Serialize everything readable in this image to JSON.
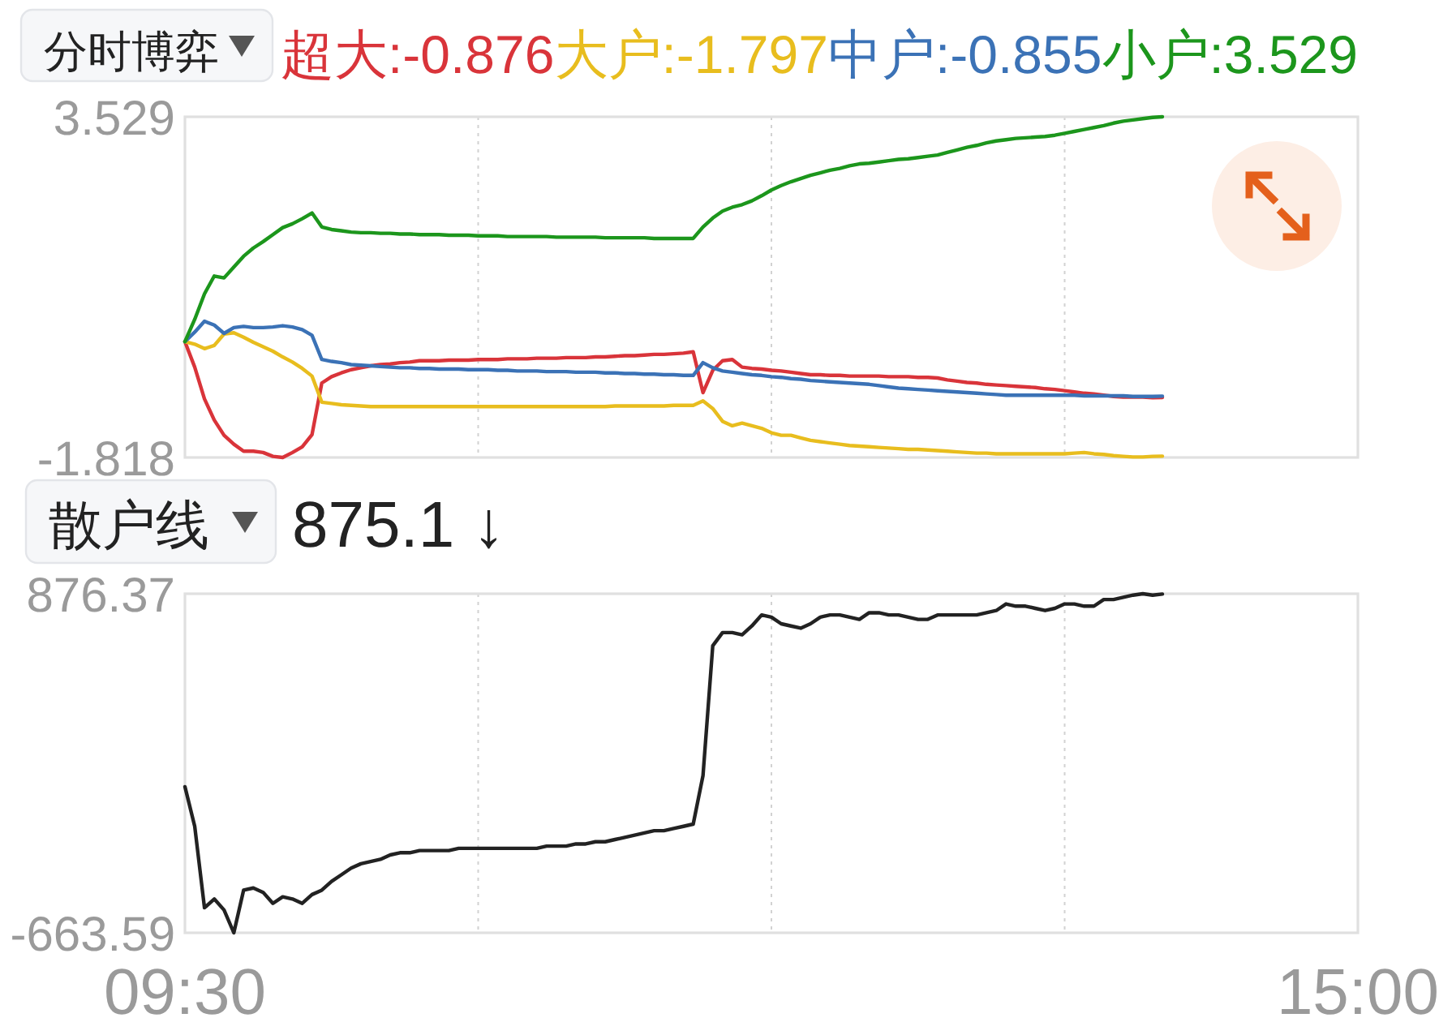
{
  "chart_data": [
    {
      "type": "line",
      "title": "分时博弈",
      "legend": "top",
      "grid": "x",
      "tick_labels": "y",
      "categories": [
        null,
        null,
        null,
        null,
        null,
        null,
        null,
        null,
        null,
        null,
        null,
        null,
        null,
        null,
        null,
        null,
        null,
        null,
        null,
        null,
        null,
        null,
        null,
        null,
        null,
        null,
        null,
        null,
        null,
        null,
        null,
        null,
        null,
        null,
        null,
        null,
        null,
        null,
        null,
        null,
        null,
        null,
        null,
        null,
        null,
        null,
        null,
        null,
        null,
        null,
        null,
        null,
        null,
        null,
        null,
        null,
        null,
        null,
        null,
        null,
        null,
        null,
        null,
        null,
        null,
        null,
        null,
        null,
        null,
        null,
        null,
        null,
        null,
        null,
        null,
        null,
        null,
        null,
        null,
        null,
        null,
        null,
        null,
        null,
        null,
        null,
        null,
        null,
        null,
        null,
        null,
        null,
        null,
        null,
        null,
        null,
        null,
        null,
        null,
        null,
        null,
        null,
        null,
        null,
        null,
        null,
        null,
        null,
        null,
        null,
        null,
        null,
        null,
        null,
        null,
        null,
        null,
        null,
        null,
        null,
        null
      ],
      "ylim": [
        -1.818,
        3.529
      ],
      "yticks": [
        3.529,
        -1.818
      ],
      "series": [
        {
          "name": "超大:-0.876",
          "color": "#d9343a",
          "values": [
            0,
            -0.4,
            -0.9,
            -1.23,
            -1.47,
            -1.61,
            -1.72,
            -1.72,
            -1.74,
            -1.8,
            -1.818,
            -1.74,
            -1.65,
            -1.46,
            -0.65,
            -0.55,
            -0.49,
            -0.44,
            -0.41,
            -0.38,
            -0.36,
            -0.35,
            -0.33,
            -0.32,
            -0.3,
            -0.3,
            -0.3,
            -0.29,
            -0.29,
            -0.29,
            -0.28,
            -0.28,
            -0.28,
            -0.27,
            -0.27,
            -0.27,
            -0.26,
            -0.26,
            -0.26,
            -0.25,
            -0.25,
            -0.25,
            -0.24,
            -0.24,
            -0.23,
            -0.22,
            -0.22,
            -0.21,
            -0.2,
            -0.2,
            -0.19,
            -0.18,
            -0.16,
            -0.8,
            -0.45,
            -0.3,
            -0.28,
            -0.4,
            -0.42,
            -0.43,
            -0.45,
            -0.46,
            -0.48,
            -0.5,
            -0.52,
            -0.52,
            -0.53,
            -0.53,
            -0.54,
            -0.54,
            -0.54,
            -0.54,
            -0.55,
            -0.55,
            -0.55,
            -0.56,
            -0.56,
            -0.57,
            -0.6,
            -0.62,
            -0.64,
            -0.65,
            -0.67,
            -0.68,
            -0.69,
            -0.7,
            -0.71,
            -0.72,
            -0.74,
            -0.75,
            -0.77,
            -0.79,
            -0.81,
            -0.82,
            -0.84,
            -0.86,
            -0.87,
            -0.87,
            -0.87,
            -0.88,
            -0.876,
            null,
            null,
            null,
            null,
            null,
            null,
            null,
            null,
            null,
            null,
            null,
            null,
            null,
            null,
            null,
            null,
            null,
            null,
            null,
            null
          ]
        },
        {
          "name": "大户:-1.797",
          "color": "#e8bd1e",
          "values": [
            0,
            -0.04,
            -0.11,
            -0.06,
            0.12,
            0.14,
            0.07,
            -0.01,
            -0.08,
            -0.15,
            -0.24,
            -0.32,
            -0.42,
            -0.54,
            -0.95,
            -0.97,
            -0.99,
            -1.0,
            -1.01,
            -1.02,
            -1.02,
            -1.02,
            -1.02,
            -1.02,
            -1.02,
            -1.02,
            -1.02,
            -1.02,
            -1.02,
            -1.02,
            -1.02,
            -1.02,
            -1.02,
            -1.02,
            -1.02,
            -1.02,
            -1.02,
            -1.02,
            -1.02,
            -1.02,
            -1.02,
            -1.02,
            -1.02,
            -1.02,
            -1.01,
            -1.01,
            -1.01,
            -1.01,
            -1.01,
            -1.01,
            -1.0,
            -1.0,
            -1.0,
            -0.93,
            -1.05,
            -1.25,
            -1.32,
            -1.28,
            -1.32,
            -1.36,
            -1.43,
            -1.47,
            -1.47,
            -1.51,
            -1.55,
            -1.57,
            -1.59,
            -1.61,
            -1.63,
            -1.64,
            -1.65,
            -1.66,
            -1.67,
            -1.68,
            -1.69,
            -1.69,
            -1.7,
            -1.71,
            -1.72,
            -1.73,
            -1.74,
            -1.75,
            -1.75,
            -1.76,
            -1.76,
            -1.76,
            -1.76,
            -1.76,
            -1.76,
            -1.76,
            -1.76,
            -1.75,
            -1.74,
            -1.76,
            -1.77,
            -1.79,
            -1.8,
            -1.81,
            -1.81,
            -1.8,
            -1.797,
            null,
            null,
            null,
            null,
            null,
            null,
            null,
            null,
            null,
            null,
            null,
            null,
            null,
            null,
            null,
            null,
            null,
            null,
            null,
            null
          ]
        },
        {
          "name": "中户:-0.855",
          "color": "#3b72b6",
          "values": [
            0,
            0.15,
            0.32,
            0.26,
            0.13,
            0.22,
            0.24,
            0.22,
            0.22,
            0.23,
            0.25,
            0.23,
            0.19,
            0.1,
            -0.28,
            -0.31,
            -0.33,
            -0.36,
            -0.37,
            -0.38,
            -0.39,
            -0.4,
            -0.41,
            -0.41,
            -0.42,
            -0.42,
            -0.43,
            -0.43,
            -0.43,
            -0.44,
            -0.44,
            -0.44,
            -0.45,
            -0.45,
            -0.46,
            -0.46,
            -0.46,
            -0.47,
            -0.47,
            -0.47,
            -0.48,
            -0.48,
            -0.48,
            -0.49,
            -0.49,
            -0.5,
            -0.5,
            -0.51,
            -0.51,
            -0.52,
            -0.52,
            -0.53,
            -0.53,
            -0.33,
            -0.41,
            -0.46,
            -0.48,
            -0.5,
            -0.52,
            -0.53,
            -0.55,
            -0.56,
            -0.58,
            -0.59,
            -0.61,
            -0.62,
            -0.63,
            -0.64,
            -0.65,
            -0.66,
            -0.67,
            -0.69,
            -0.71,
            -0.73,
            -0.74,
            -0.75,
            -0.76,
            -0.77,
            -0.78,
            -0.79,
            -0.8,
            -0.81,
            -0.82,
            -0.83,
            -0.84,
            -0.84,
            -0.84,
            -0.84,
            -0.84,
            -0.84,
            -0.84,
            -0.84,
            -0.85,
            -0.85,
            -0.85,
            -0.85,
            -0.85,
            -0.86,
            -0.86,
            -0.86,
            -0.855,
            null,
            null,
            null,
            null,
            null,
            null,
            null,
            null,
            null,
            null,
            null,
            null,
            null,
            null,
            null,
            null,
            null,
            null,
            null,
            null
          ]
        },
        {
          "name": "小户:3.529",
          "color": "#1c961c",
          "values": [
            0,
            0.35,
            0.75,
            1.03,
            1.0,
            1.17,
            1.34,
            1.47,
            1.57,
            1.68,
            1.79,
            1.85,
            1.93,
            2.02,
            1.8,
            1.76,
            1.74,
            1.72,
            1.71,
            1.71,
            1.7,
            1.7,
            1.69,
            1.69,
            1.68,
            1.68,
            1.68,
            1.67,
            1.67,
            1.67,
            1.66,
            1.66,
            1.66,
            1.65,
            1.65,
            1.65,
            1.65,
            1.65,
            1.64,
            1.64,
            1.64,
            1.64,
            1.64,
            1.63,
            1.63,
            1.63,
            1.63,
            1.63,
            1.62,
            1.62,
            1.62,
            1.62,
            1.62,
            1.8,
            1.94,
            2.05,
            2.11,
            2.15,
            2.21,
            2.29,
            2.38,
            2.45,
            2.51,
            2.56,
            2.61,
            2.65,
            2.69,
            2.72,
            2.76,
            2.79,
            2.8,
            2.82,
            2.84,
            2.86,
            2.87,
            2.89,
            2.91,
            2.93,
            2.97,
            3.01,
            3.05,
            3.08,
            3.12,
            3.15,
            3.17,
            3.19,
            3.2,
            3.21,
            3.22,
            3.24,
            3.27,
            3.3,
            3.33,
            3.36,
            3.39,
            3.43,
            3.46,
            3.48,
            3.5,
            3.52,
            3.529,
            null,
            null,
            null,
            null,
            null,
            null,
            null,
            null,
            null,
            null,
            null,
            null,
            null,
            null,
            null,
            null,
            null,
            null,
            null,
            null
          ]
        }
      ]
    },
    {
      "type": "line",
      "title": "散户线",
      "subtitle": "875.1 ↓",
      "grid": "x",
      "categories": [
        "09:30",
        null,
        null,
        null,
        null,
        null,
        null,
        null,
        null,
        null,
        null,
        null,
        null,
        null,
        null,
        null,
        null,
        null,
        null,
        null,
        null,
        null,
        null,
        null,
        null,
        null,
        null,
        null,
        null,
        null,
        null,
        null,
        null,
        null,
        null,
        null,
        null,
        null,
        null,
        null,
        null,
        null,
        null,
        null,
        null,
        null,
        null,
        null,
        null,
        null,
        null,
        null,
        null,
        null,
        null,
        null,
        null,
        null,
        null,
        null,
        null,
        null,
        null,
        null,
        null,
        null,
        null,
        null,
        null,
        null,
        null,
        null,
        null,
        null,
        null,
        null,
        null,
        null,
        null,
        null,
        null,
        null,
        null,
        null,
        null,
        null,
        null,
        null,
        null,
        null,
        null,
        null,
        null,
        null,
        null,
        null,
        null,
        null,
        null,
        null,
        null,
        null,
        null,
        null,
        null,
        null,
        null,
        null,
        null,
        null,
        null,
        null,
        null,
        null,
        null,
        null,
        null,
        null,
        null,
        null,
        "15:00"
      ],
      "ylim": [
        -663.59,
        876.37
      ],
      "yticks": [
        876.37,
        -663.59
      ],
      "series": [
        {
          "color": "#222222",
          "values": [
            0,
            -180,
            -550,
            -510,
            -560,
            -663.59,
            -470,
            -460,
            -480,
            -530,
            -500,
            -510,
            -530,
            -490,
            -470,
            -430,
            -400,
            -370,
            -350,
            -340,
            -330,
            -310,
            -300,
            -300,
            -290,
            -290,
            -290,
            -290,
            -280,
            -280,
            -280,
            -280,
            -280,
            -280,
            -280,
            -280,
            -280,
            -270,
            -270,
            -270,
            -260,
            -260,
            -250,
            -250,
            -240,
            -230,
            -220,
            -210,
            -200,
            -200,
            -190,
            -180,
            -170,
            50,
            640,
            700,
            700,
            690,
            730,
            780,
            770,
            740,
            730,
            720,
            740,
            770,
            780,
            780,
            770,
            760,
            790,
            790,
            780,
            780,
            770,
            760,
            760,
            780,
            780,
            780,
            780,
            780,
            790,
            800,
            830,
            820,
            820,
            810,
            800,
            810,
            830,
            830,
            820,
            820,
            850,
            850,
            860,
            870,
            876.37,
            870,
            875.1,
            null,
            null,
            null,
            null,
            null,
            null,
            null,
            null,
            null,
            null,
            null,
            null,
            null,
            null,
            null,
            null,
            null,
            null,
            null,
            null
          ]
        }
      ]
    }
  ]
}
